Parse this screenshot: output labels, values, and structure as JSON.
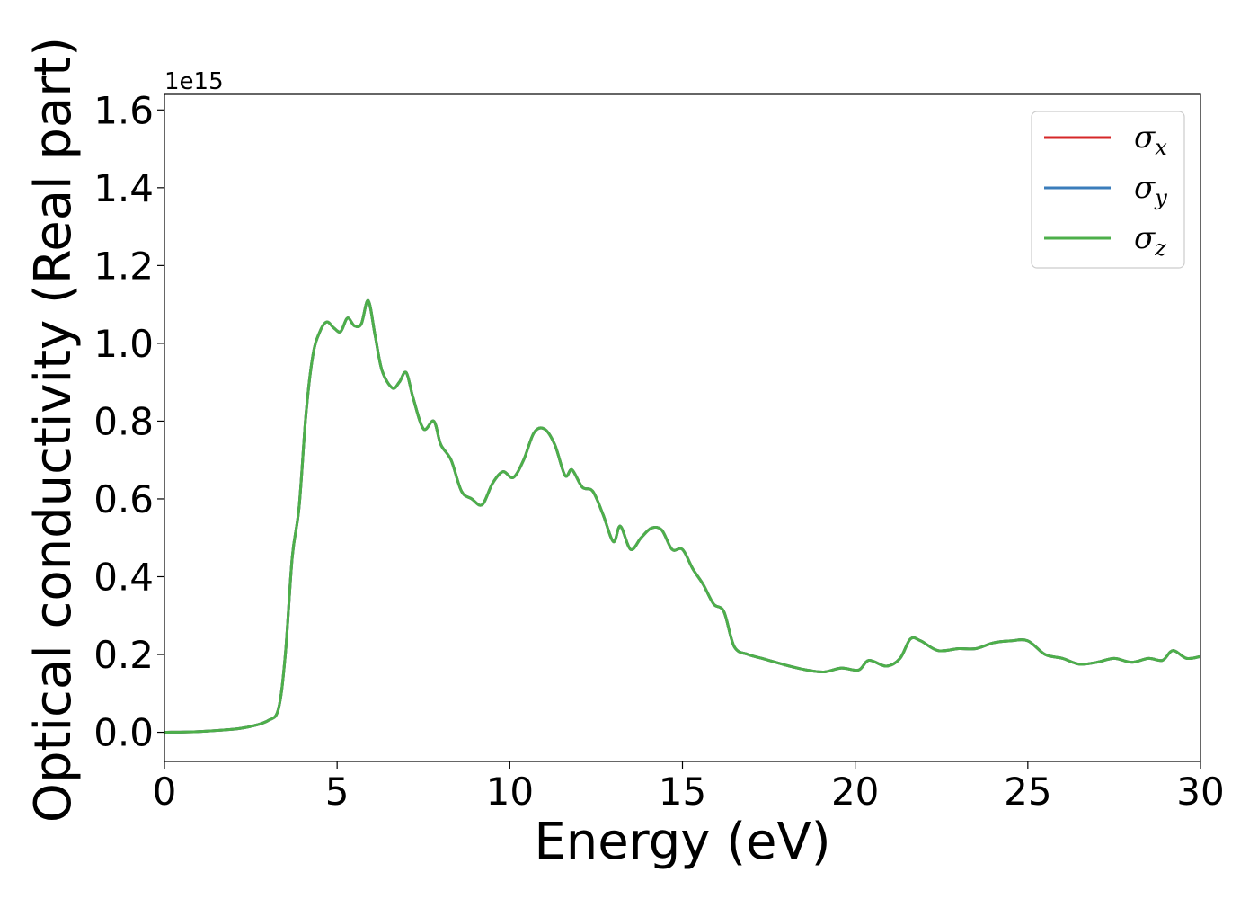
{
  "chart_data": {
    "type": "line",
    "xlabel": "Energy (eV)",
    "ylabel": "Optical conductivity (Real part)",
    "y_offset_text": "1e15",
    "y_scale": 1000000000000000.0,
    "xlim": [
      0,
      30
    ],
    "ylim": [
      -0.075,
      1.64
    ],
    "xticks": [
      0,
      5,
      10,
      15,
      20,
      25,
      30
    ],
    "xtick_labels": [
      "0",
      "5",
      "10",
      "15",
      "20",
      "25",
      "30"
    ],
    "yticks": [
      0.0,
      0.2,
      0.4,
      0.6,
      0.8,
      1.0,
      1.2,
      1.4,
      1.6
    ],
    "ytick_labels": [
      "0.0",
      "0.2",
      "0.4",
      "0.6",
      "0.8",
      "1.0",
      "1.2",
      "1.4",
      "1.6"
    ],
    "grid": false,
    "legend_position": "top-right",
    "x": [
      0,
      1,
      2,
      2.5,
      3.0,
      3.3,
      3.5,
      3.7,
      3.9,
      4.1,
      4.3,
      4.5,
      4.7,
      4.9,
      5.1,
      5.3,
      5.5,
      5.7,
      5.9,
      6.1,
      6.3,
      6.6,
      6.8,
      7.0,
      7.2,
      7.5,
      7.8,
      8.0,
      8.3,
      8.6,
      8.9,
      9.2,
      9.5,
      9.8,
      10.1,
      10.4,
      10.7,
      11.0,
      11.3,
      11.6,
      11.8,
      12.1,
      12.4,
      12.7,
      13.0,
      13.2,
      13.5,
      13.8,
      14.1,
      14.4,
      14.7,
      15.0,
      15.3,
      15.6,
      15.9,
      16.2,
      16.5,
      16.9,
      17.3,
      17.7,
      18.1,
      18.6,
      19.1,
      19.6,
      20.1,
      20.4,
      20.9,
      21.3,
      21.6,
      21.9,
      22.4,
      23.0,
      23.5,
      24.0,
      24.5,
      25.0,
      25.5,
      26.0,
      26.5,
      27.0,
      27.5,
      28.0,
      28.5,
      28.9,
      29.2,
      29.6,
      30.0
    ],
    "series": [
      {
        "name": "σx",
        "color": "#d62728",
        "y": [
          0.0,
          0.002,
          0.008,
          0.015,
          0.03,
          0.06,
          0.2,
          0.45,
          0.58,
          0.82,
          0.97,
          1.03,
          1.055,
          1.04,
          1.03,
          1.065,
          1.045,
          1.05,
          1.11,
          1.02,
          0.93,
          0.885,
          0.9,
          0.925,
          0.86,
          0.78,
          0.8,
          0.74,
          0.7,
          0.62,
          0.6,
          0.585,
          0.64,
          0.67,
          0.655,
          0.7,
          0.77,
          0.78,
          0.74,
          0.66,
          0.675,
          0.63,
          0.62,
          0.56,
          0.49,
          0.53,
          0.47,
          0.5,
          0.525,
          0.52,
          0.47,
          0.47,
          0.42,
          0.38,
          0.33,
          0.31,
          0.22,
          0.2,
          0.19,
          0.18,
          0.17,
          0.16,
          0.155,
          0.165,
          0.16,
          0.185,
          0.17,
          0.19,
          0.24,
          0.235,
          0.21,
          0.215,
          0.215,
          0.23,
          0.235,
          0.235,
          0.2,
          0.19,
          0.175,
          0.18,
          0.19,
          0.18,
          0.19,
          0.185,
          0.21,
          0.19,
          0.195
        ]
      },
      {
        "name": "σy",
        "color": "#3b7dbb",
        "y": [
          0.0,
          0.002,
          0.008,
          0.015,
          0.03,
          0.06,
          0.2,
          0.45,
          0.58,
          0.82,
          0.97,
          1.03,
          1.055,
          1.04,
          1.03,
          1.065,
          1.045,
          1.05,
          1.11,
          1.02,
          0.93,
          0.885,
          0.9,
          0.925,
          0.86,
          0.78,
          0.8,
          0.74,
          0.7,
          0.62,
          0.6,
          0.585,
          0.64,
          0.67,
          0.655,
          0.7,
          0.77,
          0.78,
          0.74,
          0.66,
          0.675,
          0.63,
          0.62,
          0.56,
          0.49,
          0.53,
          0.47,
          0.5,
          0.525,
          0.52,
          0.47,
          0.47,
          0.42,
          0.38,
          0.33,
          0.31,
          0.22,
          0.2,
          0.19,
          0.18,
          0.17,
          0.16,
          0.155,
          0.165,
          0.16,
          0.185,
          0.17,
          0.19,
          0.24,
          0.235,
          0.21,
          0.215,
          0.215,
          0.23,
          0.235,
          0.235,
          0.2,
          0.19,
          0.175,
          0.18,
          0.19,
          0.18,
          0.19,
          0.185,
          0.21,
          0.19,
          0.195
        ]
      },
      {
        "name": "σz",
        "color": "#4daf4a",
        "y": [
          0.0,
          0.002,
          0.008,
          0.015,
          0.03,
          0.06,
          0.2,
          0.45,
          0.58,
          0.82,
          0.97,
          1.03,
          1.055,
          1.04,
          1.03,
          1.065,
          1.045,
          1.05,
          1.11,
          1.02,
          0.93,
          0.885,
          0.9,
          0.925,
          0.86,
          0.78,
          0.8,
          0.74,
          0.7,
          0.62,
          0.6,
          0.585,
          0.64,
          0.67,
          0.655,
          0.7,
          0.77,
          0.78,
          0.74,
          0.66,
          0.675,
          0.63,
          0.62,
          0.56,
          0.49,
          0.53,
          0.47,
          0.5,
          0.525,
          0.52,
          0.47,
          0.47,
          0.42,
          0.38,
          0.33,
          0.31,
          0.22,
          0.2,
          0.19,
          0.18,
          0.17,
          0.16,
          0.155,
          0.165,
          0.16,
          0.185,
          0.17,
          0.19,
          0.24,
          0.235,
          0.21,
          0.215,
          0.215,
          0.23,
          0.235,
          0.235,
          0.2,
          0.19,
          0.175,
          0.18,
          0.19,
          0.18,
          0.19,
          0.185,
          0.21,
          0.19,
          0.195
        ]
      }
    ],
    "legend": [
      {
        "symbol": "σ",
        "sub": "x",
        "color": "#d62728"
      },
      {
        "symbol": "σ",
        "sub": "y",
        "color": "#3b7dbb"
      },
      {
        "symbol": "σ",
        "sub": "z",
        "color": "#4daf4a"
      }
    ]
  }
}
